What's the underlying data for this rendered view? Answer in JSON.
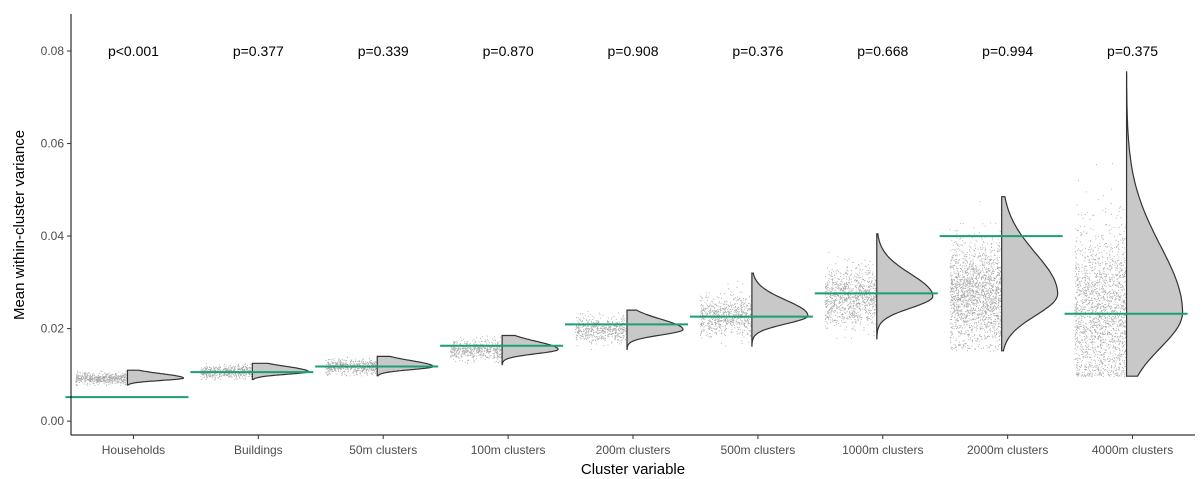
{
  "chart_data": {
    "type": "raincloud",
    "xlabel": "Cluster variable",
    "ylabel": "Mean within-cluster variance",
    "ylim": [
      -0.003,
      0.088
    ],
    "y_ticks": [
      0.0,
      0.02,
      0.04,
      0.06,
      0.08
    ],
    "y_tick_labels": [
      "0.00",
      "0.02",
      "0.04",
      "0.06",
      "0.08"
    ],
    "grid": false,
    "colors": {
      "points": "#000000",
      "violin_fill": "#c8c8c8",
      "violin_stroke": "#333333",
      "observed_line": "#1a9e77"
    },
    "groups": [
      {
        "label": "Households",
        "p_label": "p<0.001",
        "observed": 0.0052,
        "center": 0.0093,
        "sd": 0.0006,
        "min": 0.0078,
        "max": 0.011
      },
      {
        "label": "Buildings",
        "p_label": "p=0.377",
        "observed": 0.0106,
        "center": 0.0107,
        "sd": 0.0007,
        "min": 0.009,
        "max": 0.0125
      },
      {
        "label": "50m clusters",
        "p_label": "p=0.339",
        "observed": 0.0118,
        "center": 0.0118,
        "sd": 0.0008,
        "min": 0.0098,
        "max": 0.014
      },
      {
        "label": "100m clusters",
        "p_label": "p=0.870",
        "observed": 0.0163,
        "center": 0.0155,
        "sd": 0.0011,
        "min": 0.0122,
        "max": 0.0185
      },
      {
        "label": "200m clusters",
        "p_label": "p=0.908",
        "observed": 0.0209,
        "center": 0.0198,
        "sd": 0.0014,
        "min": 0.0155,
        "max": 0.024
      },
      {
        "label": "500m clusters",
        "p_label": "p=0.376",
        "observed": 0.0226,
        "center": 0.0228,
        "sd": 0.0021,
        "min": 0.0162,
        "max": 0.032
      },
      {
        "label": "1000m clusters",
        "p_label": "p=0.668",
        "observed": 0.0276,
        "center": 0.027,
        "sd": 0.003,
        "min": 0.0178,
        "max": 0.0405
      },
      {
        "label": "2000m clusters",
        "p_label": "p=0.994",
        "observed": 0.04,
        "center": 0.0275,
        "sd": 0.0055,
        "min": 0.0152,
        "max": 0.0485
      },
      {
        "label": "4000m clusters",
        "p_label": "p=0.375",
        "observed": 0.0232,
        "center": 0.0235,
        "sd": 0.009,
        "min": 0.0097,
        "max": 0.0755
      }
    ]
  }
}
